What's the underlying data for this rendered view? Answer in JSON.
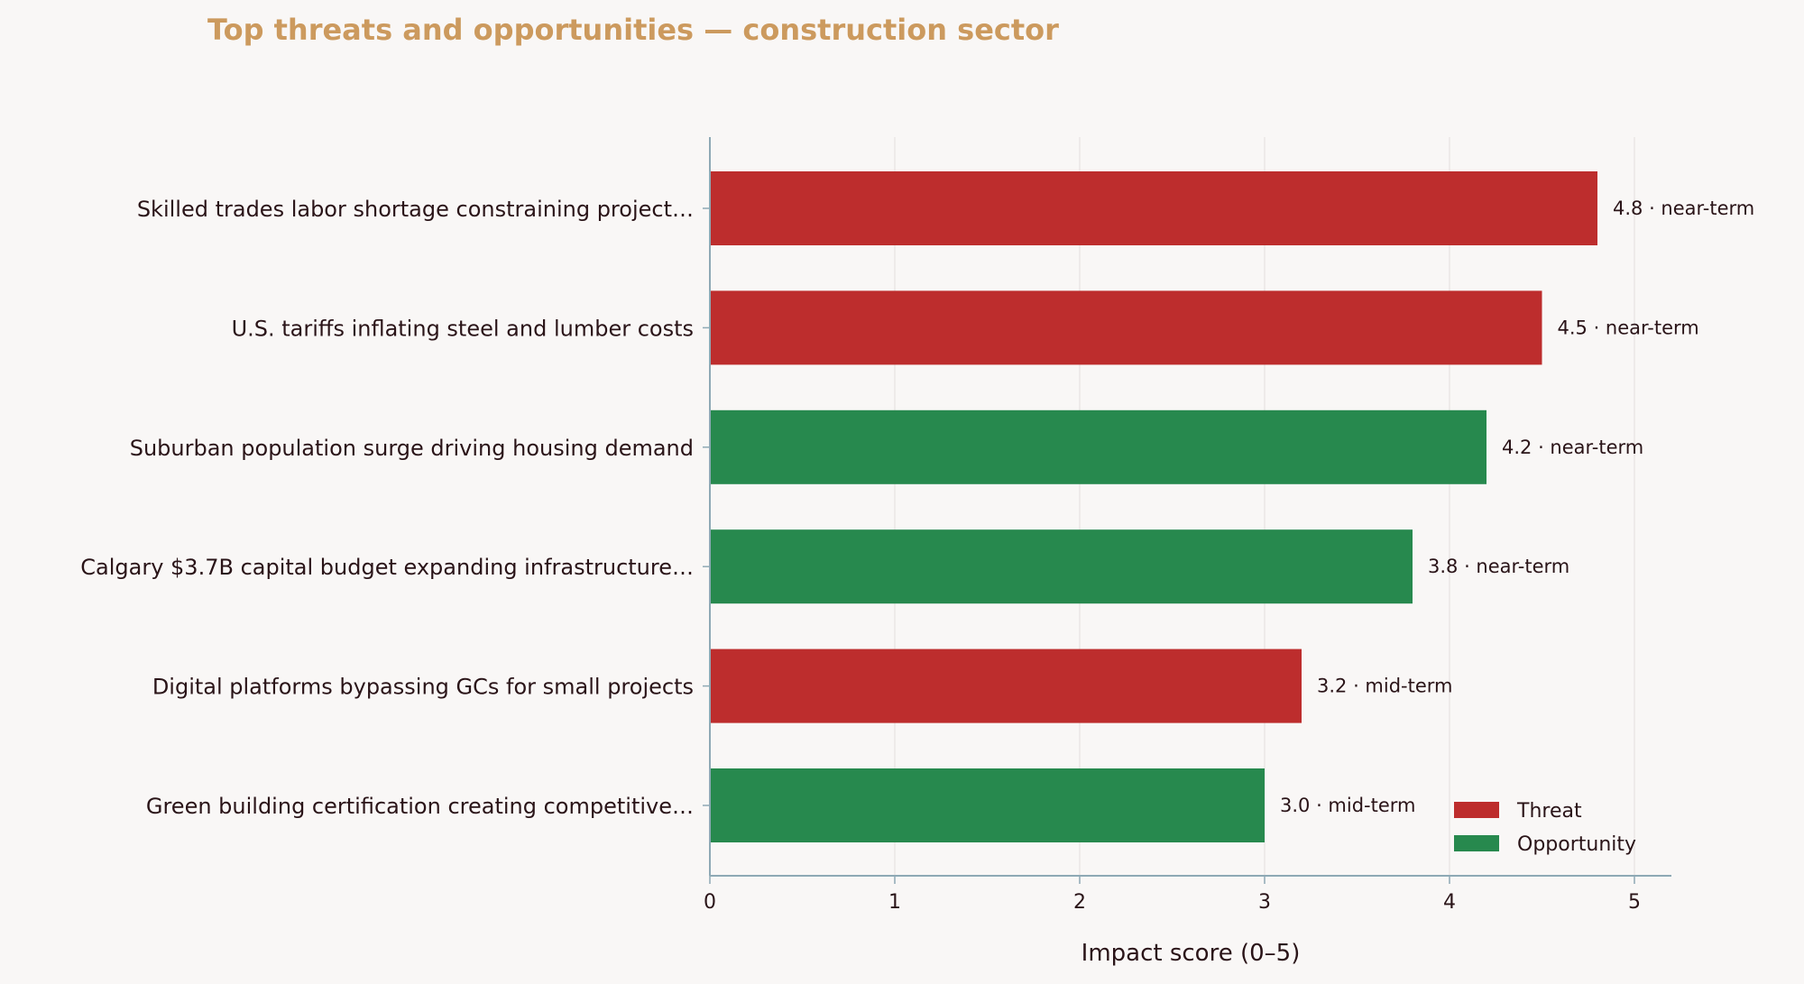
{
  "chart_data": {
    "type": "bar",
    "orientation": "horizontal",
    "title": "Top threats and opportunities — construction sector",
    "xlabel": "Impact score (0–5)",
    "ylabel": "",
    "xlim": [
      0,
      5.2
    ],
    "xticks": [
      "0",
      "1",
      "2",
      "3",
      "4",
      "5"
    ],
    "grid": "vertical",
    "legend_position": "bottom-right",
    "legend": [
      {
        "label": "Threat",
        "color": "#bd2d2d"
      },
      {
        "label": "Opportunity",
        "color": "#27894e"
      }
    ],
    "bars": [
      {
        "label": "Skilled trades labor shortage constraining project…",
        "value": 4.8,
        "kind": "Threat",
        "annotation": "4.8  ·  near-term"
      },
      {
        "label": "U.S. tariffs inflating steel and lumber costs",
        "value": 4.5,
        "kind": "Threat",
        "annotation": "4.5  ·  near-term"
      },
      {
        "label": "Suburban population surge driving housing demand",
        "value": 4.2,
        "kind": "Opportunity",
        "annotation": "4.2  ·  near-term"
      },
      {
        "label": "Calgary $3.7B capital budget expanding infrastructure…",
        "value": 3.8,
        "kind": "Opportunity",
        "annotation": "3.8  ·  near-term"
      },
      {
        "label": "Digital platforms bypassing GCs for small projects",
        "value": 3.2,
        "kind": "Threat",
        "annotation": "3.2  ·  mid-term"
      },
      {
        "label": "Green building certification creating competitive…",
        "value": 3.0,
        "kind": "Opportunity",
        "annotation": "3.0  ·  mid-term"
      }
    ]
  }
}
